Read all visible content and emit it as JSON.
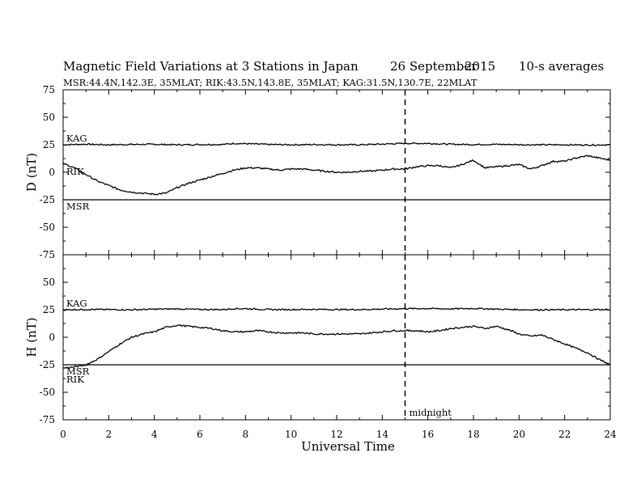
{
  "chart_data": {
    "type": "line",
    "title_left": "Magnetic Field Variations at 3 Stations in Japan",
    "title_date": "26 September",
    "title_year": "2015",
    "title_right": "10-s averages",
    "subtitle": "MSR:44.4N,142.3E, 35MLAT;  RIK:43.5N,143.8E, 35MLAT;  KAG:31.5N,130.7E, 22MLAT",
    "xlabel": "Universal Time",
    "xlim": [
      0,
      24
    ],
    "x_ticks": [
      "0",
      "2",
      "4",
      "6",
      "8",
      "10",
      "12",
      "14",
      "16",
      "18",
      "20",
      "22",
      "24"
    ],
    "marker": {
      "x": 15,
      "label": "midnight"
    },
    "panels": [
      {
        "ylabel": "D (nT)",
        "ylim": [
          -75,
          75
        ],
        "y_ticks": [
          "75",
          "50",
          "25",
          "0",
          "-25",
          "-50",
          "-75"
        ],
        "stations": [
          {
            "label": "KAG",
            "offset": 25
          },
          {
            "label": "RIK",
            "offset": 0
          },
          {
            "label": "MSR",
            "offset": -25
          }
        ],
        "series": [
          {
            "name": "KAG",
            "x": [
              0,
              1,
              2,
              3,
              4,
              5,
              6,
              7,
              7.5,
              8,
              9,
              10,
              11,
              12,
              13,
              14,
              15,
              16,
              17,
              18,
              19,
              20,
              21,
              22,
              23,
              24
            ],
            "y": [
              25,
              25.5,
              25,
              25.3,
              25.4,
              25,
              25.2,
              25.3,
              26.2,
              26,
              25.3,
              25,
              25.2,
              25,
              25,
              25.6,
              26.3,
              26.2,
              25.5,
              25.2,
              25.4,
              25.1,
              25,
              25,
              24.8,
              25
            ]
          },
          {
            "name": "RIK",
            "x": [
              0,
              0.5,
              1,
              1.5,
              2,
              2.5,
              3,
              3.5,
              4,
              4.5,
              5,
              5.5,
              6,
              6.5,
              7,
              7.5,
              8,
              8.5,
              9,
              9.5,
              10,
              10.5,
              11,
              11.5,
              12,
              12.5,
              13,
              13.5,
              14,
              14.5,
              15,
              15.5,
              16,
              16.5,
              17,
              17.5,
              18,
              18.5,
              19,
              19.5,
              20,
              20.5,
              21,
              21.5,
              22,
              22.5,
              23,
              23.5,
              24
            ],
            "y": [
              8,
              4,
              -2,
              -8,
              -12,
              -16,
              -18,
              -19,
              -20,
              -19,
              -14,
              -10,
              -7,
              -4,
              -1,
              2,
              4,
              4,
              3,
              2,
              3,
              3,
              2,
              1,
              0,
              0,
              1,
              1,
              2,
              3,
              3,
              5,
              6,
              6,
              4,
              7,
              11,
              4,
              5,
              6,
              7,
              3,
              6,
              10,
              10,
              13,
              15,
              13,
              11
            ]
          },
          {
            "name": "MSR",
            "x": [
              0,
              24
            ],
            "y": [
              -25,
              -25
            ]
          }
        ]
      },
      {
        "ylabel": "H (nT)",
        "ylim": [
          -75,
          75
        ],
        "y_ticks": [
          "75",
          "50",
          "25",
          "0",
          "-25",
          "-50",
          "-75"
        ],
        "stations": [
          {
            "label": "KAG",
            "offset": 25
          },
          {
            "label": "MSR",
            "offset": -25
          },
          {
            "label": "RIK",
            "offset": -25
          }
        ],
        "series": [
          {
            "name": "KAG",
            "x": [
              0,
              1,
              2,
              3,
              4,
              5,
              6,
              7,
              7.5,
              8,
              9,
              10,
              11,
              12,
              13,
              14,
              15,
              16,
              17,
              18,
              19,
              20,
              21,
              22,
              23,
              24
            ],
            "y": [
              25,
              25.3,
              25.2,
              25,
              25.5,
              25.8,
              25.3,
              25.2,
              26,
              26,
              25.2,
              25.2,
              25.4,
              25.2,
              25.2,
              25.6,
              26,
              26.1,
              25.8,
              26.2,
              25.6,
              25.1,
              25,
              25,
              25.1,
              25.2
            ]
          },
          {
            "name": "RIK",
            "x": [
              0,
              0.5,
              1,
              1.5,
              2,
              2.5,
              3,
              3.5,
              4,
              4.5,
              5,
              5.5,
              6,
              6.5,
              7,
              7.5,
              8,
              8.5,
              9,
              9.5,
              10,
              10.5,
              11,
              11.5,
              12,
              12.5,
              13,
              13.5,
              14,
              14.5,
              15,
              15.5,
              16,
              16.5,
              17,
              17.5,
              18,
              18.5,
              19,
              19.5,
              20,
              20.5,
              21,
              21.5,
              22,
              22.5,
              23,
              23.5,
              24
            ],
            "y": [
              -28,
              -27,
              -25,
              -20,
              -13,
              -6,
              0,
              3,
              5,
              9,
              11,
              10,
              9,
              8,
              6,
              5,
              5,
              6,
              5,
              4,
              4,
              4,
              3,
              3,
              3,
              3,
              3,
              4,
              5,
              6,
              6,
              6,
              5,
              6,
              8,
              9,
              10,
              8,
              10,
              7,
              3,
              1,
              2,
              -2,
              -6,
              -10,
              -14,
              -20,
              -25
            ]
          },
          {
            "name": "MSR",
            "x": [
              0,
              24
            ],
            "y": [
              -25,
              -25
            ]
          }
        ]
      }
    ]
  }
}
